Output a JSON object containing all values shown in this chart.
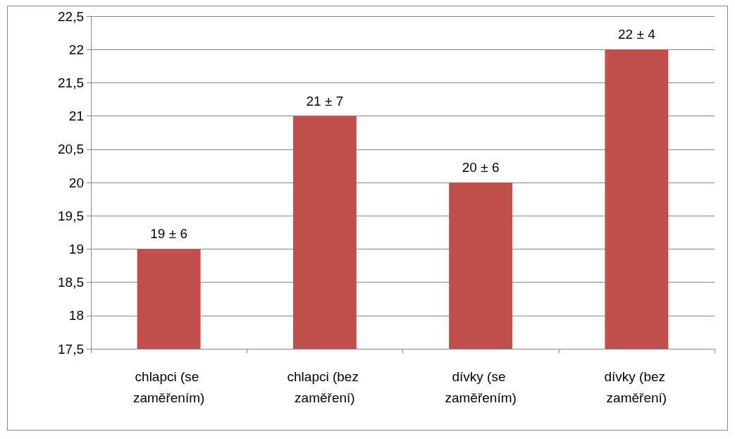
{
  "chart_data": {
    "type": "bar",
    "categories": [
      "chlapci (se zaměřením)",
      "chlapci (bez zaměření)",
      "dívky (se zaměřením)",
      "dívky (bez zaměření)"
    ],
    "values": [
      19,
      21,
      20,
      22
    ],
    "value_labels": [
      "19 ± 6",
      "21 ± 7",
      "20 ± 6",
      "22 ± 4"
    ],
    "color": "#c0504d",
    "ylim": [
      17.5,
      22.5
    ],
    "yticks": [
      {
        "value": 17.5,
        "label": "17,5"
      },
      18,
      {
        "value": 18.5,
        "label": "18,5"
      },
      19,
      {
        "value": 19.5,
        "label": "19,5"
      },
      20,
      {
        "value": 20.5,
        "label": "20,5"
      },
      21,
      {
        "value": 21.5,
        "label": "21,5"
      },
      22,
      {
        "value": 22.5,
        "label": "22,5"
      }
    ],
    "grid": "y"
  }
}
